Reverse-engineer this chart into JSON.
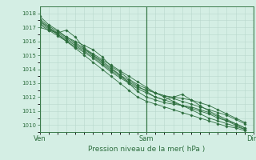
{
  "title": "",
  "xlabel": "Pression niveau de la mer( hPa )",
  "ylabel": "",
  "bg_color": "#d4eee4",
  "grid_color": "#b8d8cc",
  "line_color": "#2d6e3e",
  "xtick_labels": [
    "Ven",
    "Sam",
    "Dim"
  ],
  "xtick_positions": [
    0,
    48,
    96
  ],
  "ylim": [
    1009.5,
    1018.5
  ],
  "xlim": [
    0,
    96
  ],
  "yticks": [
    1010,
    1011,
    1012,
    1013,
    1014,
    1015,
    1016,
    1017,
    1018
  ],
  "scatter_series": [
    {
      "x": [
        0,
        4,
        8,
        12,
        16,
        20,
        24,
        28,
        32,
        36,
        40,
        44,
        48,
        52,
        56,
        60,
        64,
        68,
        72,
        76,
        80,
        84,
        88,
        92
      ],
      "y": [
        1017.8,
        1017.2,
        1016.8,
        1016.3,
        1015.9,
        1015.5,
        1015.1,
        1014.7,
        1014.3,
        1013.9,
        1013.5,
        1013.1,
        1012.7,
        1012.3,
        1012.0,
        1011.7,
        1011.4,
        1011.1,
        1010.8,
        1010.5,
        1010.3,
        1010.1,
        1009.9,
        1009.7
      ]
    },
    {
      "x": [
        0,
        4,
        8,
        12,
        16,
        20,
        24,
        28,
        32,
        36,
        40,
        44,
        48,
        52,
        56,
        60,
        64,
        68,
        72,
        76,
        80,
        84,
        88,
        92
      ],
      "y": [
        1017.5,
        1017.0,
        1016.5,
        1016.0,
        1015.5,
        1015.0,
        1014.5,
        1014.0,
        1013.5,
        1013.0,
        1012.5,
        1012.0,
        1011.7,
        1011.5,
        1011.3,
        1011.1,
        1010.9,
        1010.7,
        1010.5,
        1010.3,
        1010.1,
        1009.9,
        1009.8,
        1009.6
      ]
    },
    {
      "x": [
        0,
        4,
        8,
        12,
        16,
        20,
        24,
        28,
        32,
        36,
        40,
        44,
        48,
        52,
        56,
        60,
        64,
        68,
        72,
        76,
        80,
        84,
        88,
        92
      ],
      "y": [
        1017.0,
        1016.8,
        1016.6,
        1016.8,
        1016.3,
        1015.5,
        1015.0,
        1014.5,
        1014.0,
        1013.6,
        1013.2,
        1012.8,
        1012.4,
        1012.0,
        1011.8,
        1011.6,
        1011.4,
        1011.2,
        1011.0,
        1010.8,
        1010.5,
        1010.3,
        1010.1,
        1009.8
      ]
    },
    {
      "x": [
        0,
        4,
        8,
        12,
        16,
        20,
        24,
        28,
        32,
        36,
        40,
        44,
        48,
        52,
        56,
        60,
        64,
        68,
        72,
        76,
        80,
        84,
        88,
        92
      ],
      "y": [
        1017.3,
        1016.9,
        1016.5,
        1016.1,
        1015.7,
        1015.3,
        1014.9,
        1014.4,
        1013.9,
        1013.5,
        1013.1,
        1012.7,
        1012.5,
        1012.3,
        1012.1,
        1011.9,
        1011.7,
        1011.5,
        1011.3,
        1011.1,
        1010.9,
        1010.7,
        1010.4,
        1010.1
      ]
    },
    {
      "x": [
        0,
        4,
        8,
        12,
        16,
        20,
        24,
        28,
        32,
        36,
        40,
        44,
        48,
        52,
        56,
        60,
        64,
        68,
        72,
        76,
        80,
        84,
        88,
        92
      ],
      "y": [
        1017.6,
        1017.1,
        1016.7,
        1016.3,
        1016.0,
        1015.7,
        1015.4,
        1014.9,
        1014.2,
        1013.8,
        1013.3,
        1012.9,
        1012.6,
        1012.3,
        1012.1,
        1012.0,
        1011.9,
        1011.8,
        1011.6,
        1011.4,
        1011.1,
        1010.8,
        1010.5,
        1010.2
      ]
    },
    {
      "x": [
        0,
        4,
        8,
        12,
        16,
        20,
        24,
        28,
        32,
        36,
        40,
        44,
        48,
        52,
        56,
        60,
        64,
        68,
        72,
        76,
        80,
        84,
        88,
        92
      ],
      "y": [
        1017.4,
        1017.0,
        1016.6,
        1016.2,
        1015.8,
        1015.4,
        1015.0,
        1014.6,
        1014.1,
        1013.6,
        1013.0,
        1012.4,
        1012.0,
        1011.8,
        1011.6,
        1011.5,
        1011.4,
        1011.3,
        1011.1,
        1010.9,
        1010.6,
        1010.3,
        1010.0,
        1009.7
      ]
    },
    {
      "x": [
        0,
        4,
        8,
        12,
        16,
        20,
        24,
        28,
        32,
        36,
        40,
        44,
        48,
        52,
        56,
        60,
        64,
        68,
        72,
        76,
        80,
        84,
        88,
        92
      ],
      "y": [
        1017.2,
        1016.8,
        1016.4,
        1016.0,
        1015.6,
        1015.2,
        1014.8,
        1014.3,
        1013.8,
        1013.4,
        1013.0,
        1012.6,
        1012.3,
        1012.0,
        1011.8,
        1012.0,
        1012.2,
        1011.8,
        1011.4,
        1011.0,
        1010.7,
        1010.4,
        1010.1,
        1009.8
      ]
    }
  ]
}
